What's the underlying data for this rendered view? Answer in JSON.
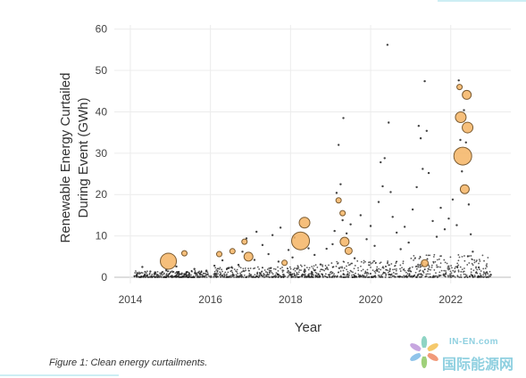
{
  "caption": "Figure 1: Clean energy curtailments.",
  "watermark": {
    "top": "IN-EN.com",
    "main": "国际能源网"
  },
  "colors": {
    "accent_line": "#cdeef4",
    "bubble_fill": "#f5b464",
    "bubble_stroke": "#7a5a30",
    "dot": "#222222",
    "grid": "#ececec",
    "logo": "#8fd0e0"
  },
  "chart_data": {
    "type": "scatter",
    "title": "",
    "xlabel": "Year",
    "ylabel_lines": [
      "Renewable Energy Curtailed",
      "During Event (GWh)"
    ],
    "xlim": [
      2013.6,
      2023.5
    ],
    "ylim": [
      -1.5,
      61
    ],
    "x_ticks": [
      2014,
      2016,
      2018,
      2020,
      2022
    ],
    "y_ticks": [
      0,
      10,
      20,
      30,
      40,
      50,
      60
    ],
    "grid": true,
    "legend": "none",
    "marker_note": "small dark dots = individual events; orange bubbles sized by relative magnitude",
    "bubbles": [
      {
        "x": 2014.95,
        "y": 3.9,
        "size": 9
      },
      {
        "x": 2015.35,
        "y": 5.8,
        "size": 3
      },
      {
        "x": 2016.22,
        "y": 5.6,
        "size": 3
      },
      {
        "x": 2016.55,
        "y": 6.3,
        "size": 3
      },
      {
        "x": 2016.85,
        "y": 8.6,
        "size": 3
      },
      {
        "x": 2016.95,
        "y": 5.0,
        "size": 5
      },
      {
        "x": 2017.85,
        "y": 3.5,
        "size": 3
      },
      {
        "x": 2018.25,
        "y": 8.8,
        "size": 10
      },
      {
        "x": 2018.35,
        "y": 13.2,
        "size": 6
      },
      {
        "x": 2019.2,
        "y": 18.6,
        "size": 3
      },
      {
        "x": 2019.3,
        "y": 15.5,
        "size": 3
      },
      {
        "x": 2019.35,
        "y": 8.6,
        "size": 5
      },
      {
        "x": 2019.45,
        "y": 6.4,
        "size": 4
      },
      {
        "x": 2021.35,
        "y": 3.4,
        "size": 4
      },
      {
        "x": 2022.22,
        "y": 46.0,
        "size": 3
      },
      {
        "x": 2022.25,
        "y": 38.7,
        "size": 6
      },
      {
        "x": 2022.3,
        "y": 29.3,
        "size": 10
      },
      {
        "x": 2022.35,
        "y": 21.3,
        "size": 5
      },
      {
        "x": 2022.42,
        "y": 36.2,
        "size": 6
      },
      {
        "x": 2022.4,
        "y": 44.1,
        "size": 5
      }
    ],
    "points": [
      {
        "x": 2014.3,
        "y": 2.5
      },
      {
        "x": 2014.5,
        "y": 1.4
      },
      {
        "x": 2014.6,
        "y": 0.8
      },
      {
        "x": 2014.9,
        "y": 1.8
      },
      {
        "x": 2015.15,
        "y": 2.6
      },
      {
        "x": 2015.4,
        "y": 1.2
      },
      {
        "x": 2015.6,
        "y": 2.0
      },
      {
        "x": 2015.9,
        "y": 1.6
      },
      {
        "x": 2016.1,
        "y": 2.8
      },
      {
        "x": 2016.3,
        "y": 4.1
      },
      {
        "x": 2016.45,
        "y": 2.2
      },
      {
        "x": 2016.7,
        "y": 3.0
      },
      {
        "x": 2016.8,
        "y": 6.2
      },
      {
        "x": 2016.9,
        "y": 9.4
      },
      {
        "x": 2017.1,
        "y": 4.2
      },
      {
        "x": 2017.15,
        "y": 11.0
      },
      {
        "x": 2017.3,
        "y": 7.8
      },
      {
        "x": 2017.45,
        "y": 5.6
      },
      {
        "x": 2017.55,
        "y": 10.2
      },
      {
        "x": 2017.7,
        "y": 3.8
      },
      {
        "x": 2017.75,
        "y": 12.0
      },
      {
        "x": 2017.95,
        "y": 6.6
      },
      {
        "x": 2018.05,
        "y": 4.8
      },
      {
        "x": 2018.1,
        "y": 9.6
      },
      {
        "x": 2018.45,
        "y": 7.0
      },
      {
        "x": 2018.6,
        "y": 5.4
      },
      {
        "x": 2018.75,
        "y": 3.1
      },
      {
        "x": 2018.9,
        "y": 6.9
      },
      {
        "x": 2019.05,
        "y": 8.0
      },
      {
        "x": 2019.1,
        "y": 11.2
      },
      {
        "x": 2019.15,
        "y": 20.4
      },
      {
        "x": 2019.2,
        "y": 32.0
      },
      {
        "x": 2019.25,
        "y": 22.5
      },
      {
        "x": 2019.3,
        "y": 13.8
      },
      {
        "x": 2019.32,
        "y": 38.5
      },
      {
        "x": 2019.4,
        "y": 10.6
      },
      {
        "x": 2019.5,
        "y": 12.8
      },
      {
        "x": 2019.6,
        "y": 4.6
      },
      {
        "x": 2019.75,
        "y": 15.0
      },
      {
        "x": 2019.9,
        "y": 9.2
      },
      {
        "x": 2020.0,
        "y": 12.4
      },
      {
        "x": 2020.1,
        "y": 7.6
      },
      {
        "x": 2020.2,
        "y": 18.2
      },
      {
        "x": 2020.25,
        "y": 27.8
      },
      {
        "x": 2020.3,
        "y": 22.0
      },
      {
        "x": 2020.35,
        "y": 28.8
      },
      {
        "x": 2020.42,
        "y": 56.2
      },
      {
        "x": 2020.45,
        "y": 37.4
      },
      {
        "x": 2020.5,
        "y": 20.6
      },
      {
        "x": 2020.55,
        "y": 14.6
      },
      {
        "x": 2020.65,
        "y": 10.8
      },
      {
        "x": 2020.75,
        "y": 6.8
      },
      {
        "x": 2020.85,
        "y": 12.2
      },
      {
        "x": 2020.95,
        "y": 8.4
      },
      {
        "x": 2021.05,
        "y": 16.4
      },
      {
        "x": 2021.15,
        "y": 21.8
      },
      {
        "x": 2021.2,
        "y": 36.6
      },
      {
        "x": 2021.25,
        "y": 33.6
      },
      {
        "x": 2021.3,
        "y": 26.2
      },
      {
        "x": 2021.35,
        "y": 47.4
      },
      {
        "x": 2021.4,
        "y": 35.4
      },
      {
        "x": 2021.45,
        "y": 25.2
      },
      {
        "x": 2021.55,
        "y": 13.6
      },
      {
        "x": 2021.65,
        "y": 9.8
      },
      {
        "x": 2021.75,
        "y": 16.8
      },
      {
        "x": 2021.85,
        "y": 11.6
      },
      {
        "x": 2021.95,
        "y": 14.2
      },
      {
        "x": 2022.05,
        "y": 18.8
      },
      {
        "x": 2022.15,
        "y": 12.6
      },
      {
        "x": 2022.2,
        "y": 47.6
      },
      {
        "x": 2022.24,
        "y": 33.2
      },
      {
        "x": 2022.28,
        "y": 25.6
      },
      {
        "x": 2022.33,
        "y": 40.4
      },
      {
        "x": 2022.38,
        "y": 32.6
      },
      {
        "x": 2022.45,
        "y": 17.6
      },
      {
        "x": 2022.5,
        "y": 10.4
      },
      {
        "x": 2022.55,
        "y": 6.2
      },
      {
        "x": 2022.7,
        "y": 2.4
      },
      {
        "x": 2022.9,
        "y": 1.2
      },
      {
        "x": 2023.0,
        "y": 0.6
      }
    ]
  }
}
